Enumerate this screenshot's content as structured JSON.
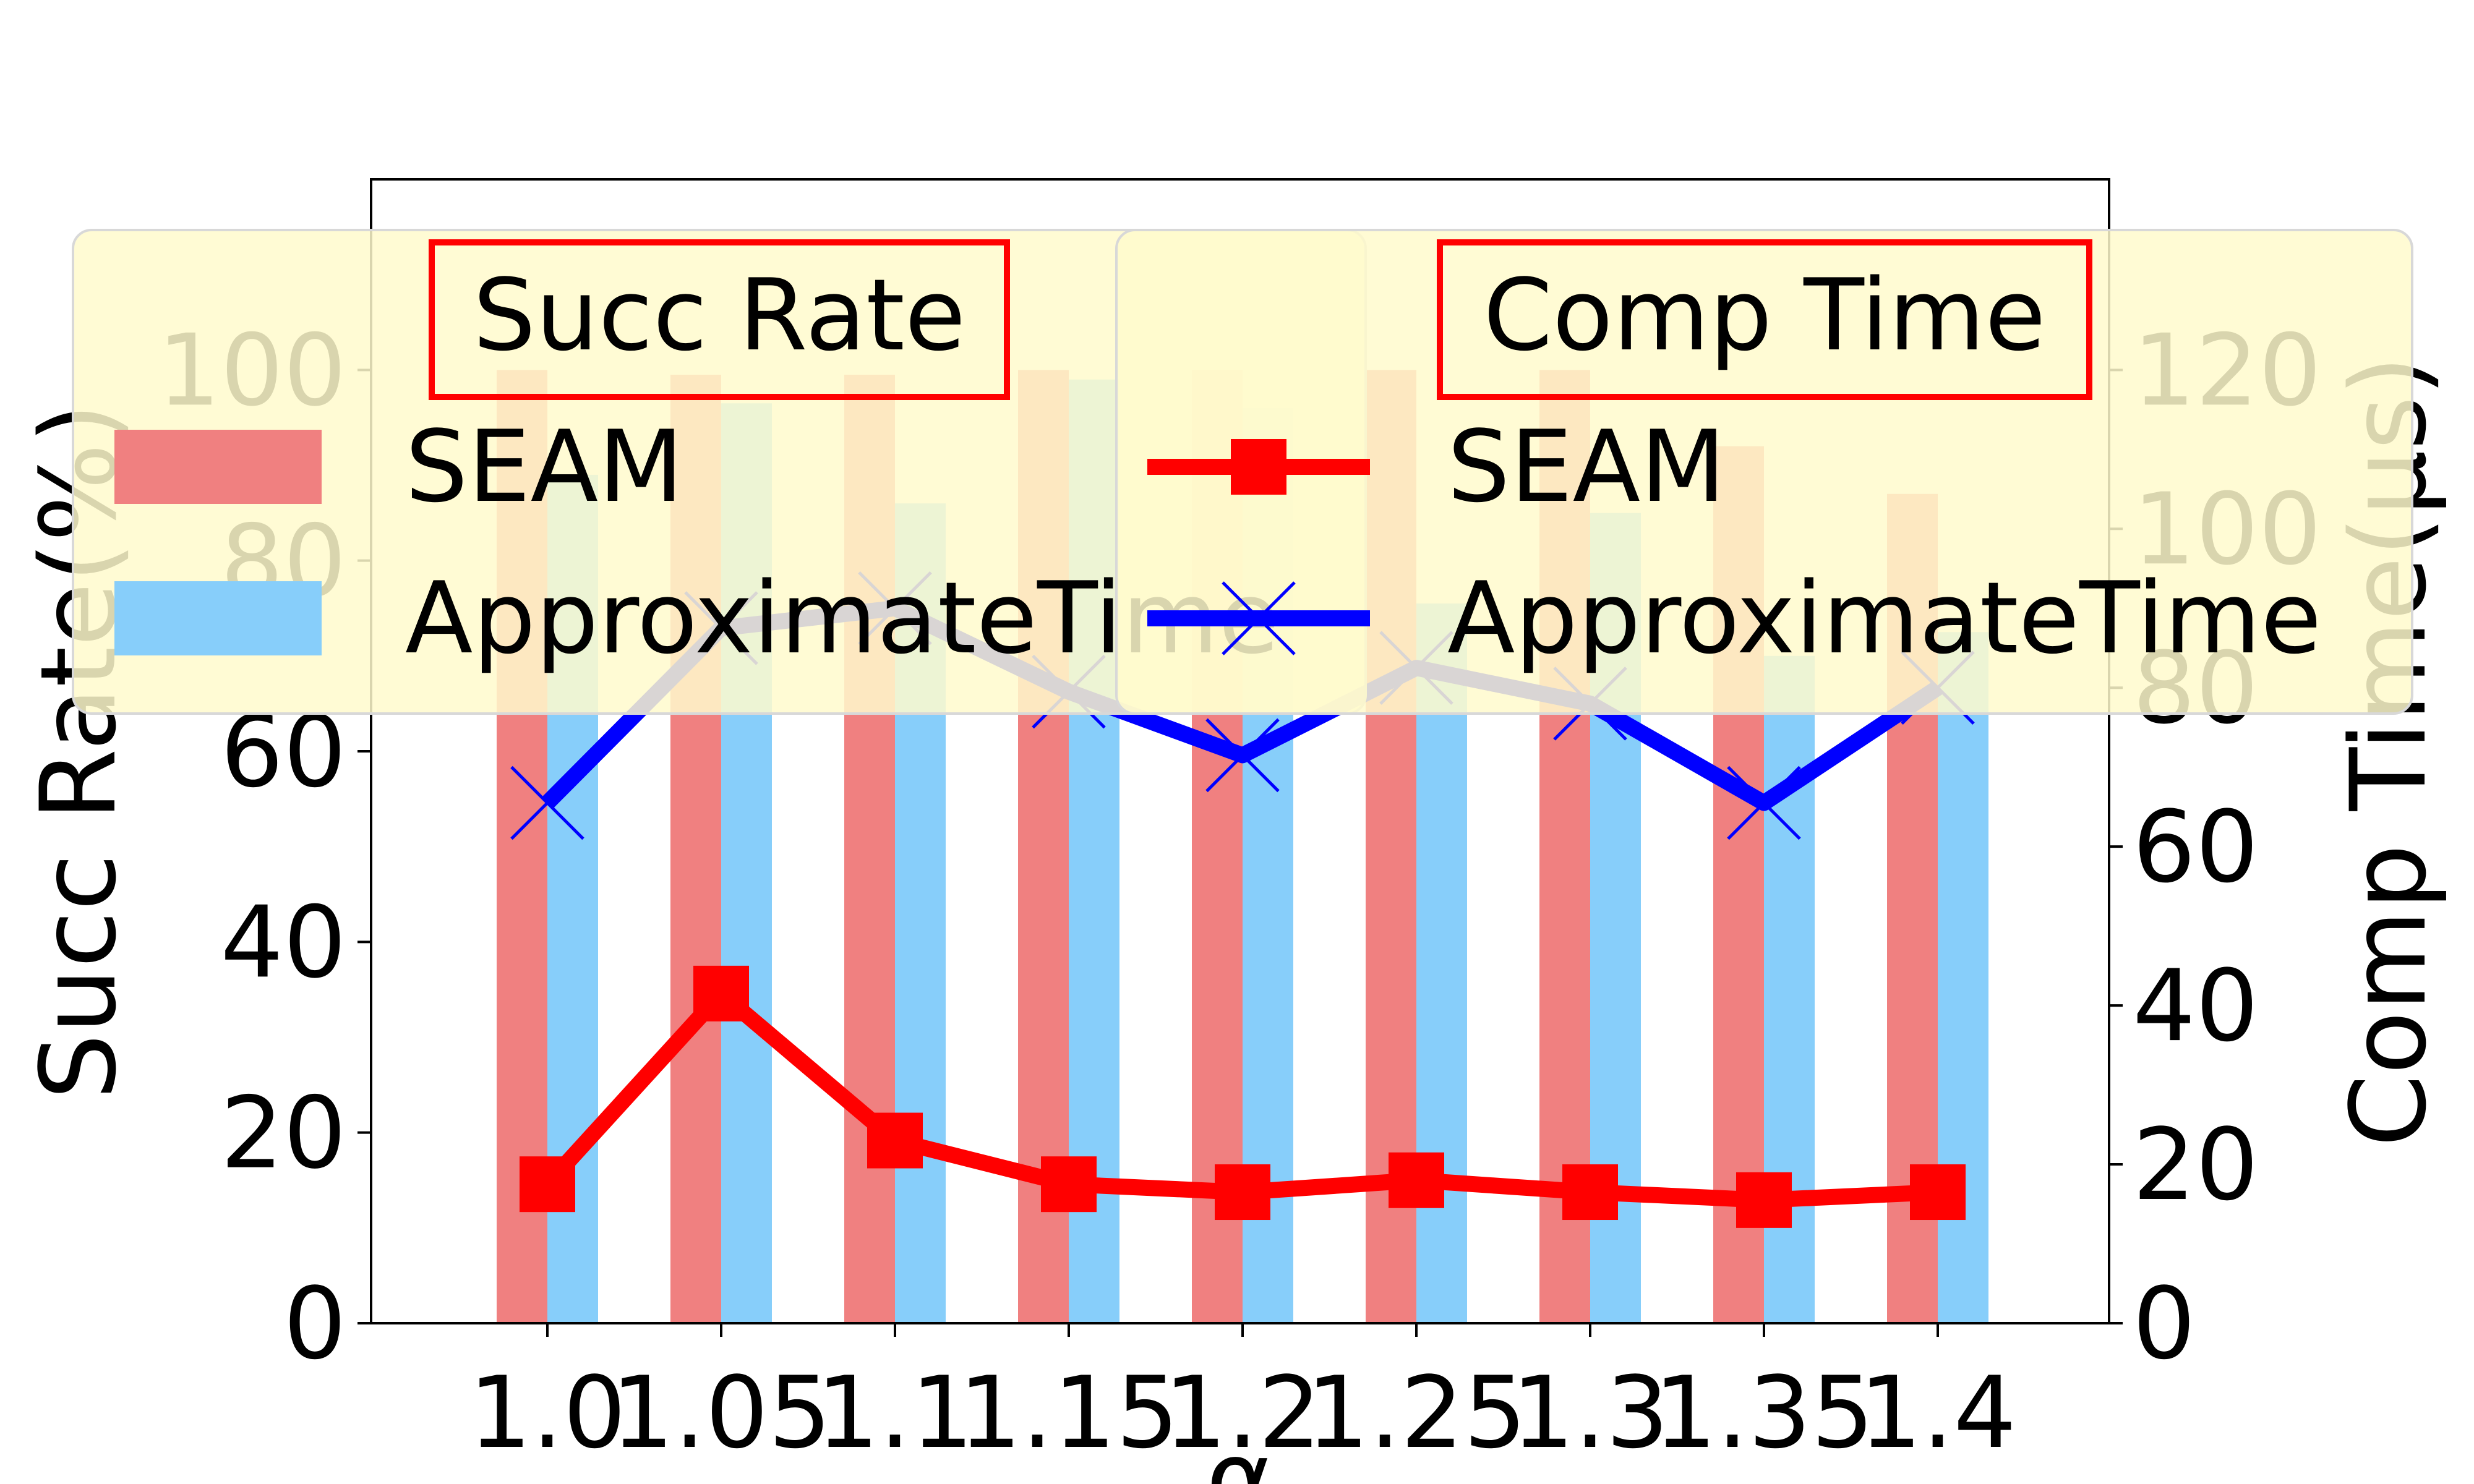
{
  "chart_data": {
    "type": "bar",
    "categories": [
      "1.0",
      "1.05",
      "1.1",
      "1.15",
      "1.2",
      "1.25",
      "1.3",
      "1.35",
      "1.4"
    ],
    "xlabel": "α",
    "y_left": {
      "label": "Succ Rate(%)",
      "lim": [
        0,
        120
      ],
      "ticks": [
        0,
        20,
        40,
        60,
        80,
        100
      ]
    },
    "y_right": {
      "label": "Comp Time(μs)",
      "lim": [
        0,
        144
      ],
      "ticks": [
        0,
        20,
        40,
        60,
        80,
        100,
        120
      ]
    },
    "bar_series": [
      {
        "name": "SEAM",
        "color": "#f08080",
        "values": [
          100,
          99.5,
          99.5,
          100,
          100,
          100,
          100,
          92,
          87
        ]
      },
      {
        "name": "ApproximateTime",
        "color": "#87cefa",
        "values": [
          89,
          96.5,
          86,
          99,
          96,
          75.5,
          85,
          70,
          72.5
        ]
      }
    ],
    "line_series": [
      {
        "name": "SEAM",
        "color": "#ff0000",
        "marker": "square",
        "values": [
          17.5,
          41.5,
          23,
          17.5,
          16.5,
          18,
          16.5,
          15.5,
          16.5
        ]
      },
      {
        "name": "ApproximateTime",
        "color": "#0000ff",
        "marker": "x",
        "values": [
          65.5,
          87.5,
          90,
          79.5,
          71.5,
          82.5,
          78,
          65.5,
          80
        ]
      }
    ],
    "legend": {
      "placement": "top",
      "bars_title": "Succ Rate",
      "lines_title": "Comp Time",
      "background": "#fffacd",
      "title_box_color": "#ff0000"
    }
  }
}
